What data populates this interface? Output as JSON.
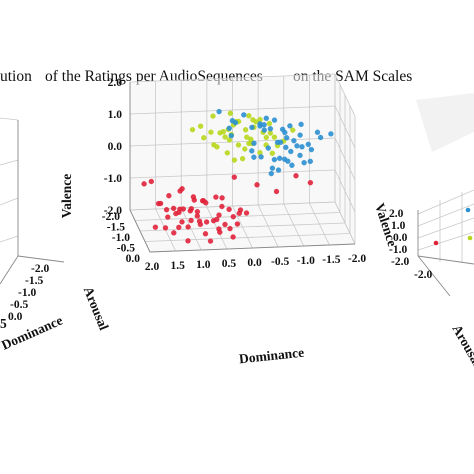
{
  "caption": {
    "part1": "ution",
    "part2": "of the Ratings per AudioSequences",
    "part3": "on the SAM Scales"
  },
  "chart_data": {
    "type": "scatter",
    "title": "",
    "xlabel": "Dominance",
    "ylabel": "Arousal",
    "zlabel": "Valence",
    "xlim": [
      -2.0,
      2.0
    ],
    "ylim": [
      0.0,
      -2.0
    ],
    "zlim": [
      -2.0,
      2.0
    ],
    "xticks": [
      "2.0",
      "1.5",
      "1.0",
      "0.5",
      "0.0",
      "-0.5",
      "-1.0",
      "-1.5",
      "-2.0"
    ],
    "xtick_values": [
      2.0,
      1.5,
      1.0,
      0.5,
      0.0,
      -0.5,
      -1.0,
      -1.5,
      -2.0
    ],
    "yticks": [
      "0.0",
      "-0.5",
      "-1.0",
      "-1.5",
      "-2.0"
    ],
    "ytick_values": [
      0.0,
      -0.5,
      -1.0,
      -1.5,
      -2.0
    ],
    "zticks": [
      "2.0",
      "1.0",
      "0.0",
      "-1.0",
      "-2.0"
    ],
    "ztick_values": [
      2.0,
      1.0,
      0.0,
      -1.0,
      -2.0
    ],
    "colors": {
      "red": "#e0223a",
      "blue": "#2b8fd0",
      "green": "#b7d71c"
    },
    "series": [
      {
        "color": "#e0223a",
        "points": [
          [
            0.9,
            -0.6,
            -1.6
          ],
          [
            1.1,
            -0.8,
            -1.8
          ],
          [
            0.6,
            -0.5,
            -1.4
          ],
          [
            1.3,
            -1.0,
            -1.5
          ],
          [
            0.8,
            -1.2,
            -1.9
          ],
          [
            0.4,
            -0.7,
            -1.7
          ],
          [
            1.0,
            -0.4,
            -1.2
          ],
          [
            1.5,
            -0.9,
            -1.3
          ],
          [
            0.2,
            -0.9,
            -1.6
          ],
          [
            0.7,
            -1.4,
            -1.4
          ],
          [
            1.2,
            -0.3,
            -1.9
          ],
          [
            0.5,
            -1.1,
            -1.1
          ],
          [
            0.9,
            -1.5,
            -1.7
          ],
          [
            1.4,
            -1.3,
            -1.8
          ],
          [
            0.3,
            -0.4,
            -1.9
          ],
          [
            1.1,
            -1.6,
            -1.2
          ],
          [
            0.6,
            -0.2,
            -1.6
          ],
          [
            0.0,
            -0.6,
            -1.3
          ],
          [
            1.6,
            -0.5,
            -1.6
          ],
          [
            0.8,
            -0.8,
            -1.0
          ],
          [
            1.0,
            -1.1,
            -1.5
          ],
          [
            0.4,
            -1.3,
            -1.8
          ],
          [
            1.3,
            -0.6,
            -1.1
          ],
          [
            0.7,
            -0.3,
            -1.3
          ],
          [
            1.2,
            -1.2,
            -1.6
          ],
          [
            0.1,
            -1.0,
            -1.9
          ],
          [
            0.9,
            -0.9,
            -1.4
          ],
          [
            1.5,
            -1.5,
            -1.5
          ],
          [
            0.5,
            -0.8,
            -1.9
          ],
          [
            1.1,
            -0.5,
            -1.4
          ],
          [
            0.3,
            -1.5,
            -1.4
          ],
          [
            0.8,
            -0.1,
            -1.8
          ],
          [
            1.4,
            -0.2,
            -1.4
          ],
          [
            0.6,
            -1.6,
            -1.6
          ],
          [
            1.0,
            -1.8,
            -1.9
          ],
          [
            0.2,
            -0.3,
            -1.1
          ],
          [
            1.7,
            -1.0,
            -1.9
          ],
          [
            0.9,
            -1.3,
            -1.2
          ],
          [
            0.5,
            -0.5,
            -1.0
          ],
          [
            1.2,
            -0.9,
            -1.7
          ],
          [
            0.7,
            -1.0,
            -1.8
          ],
          [
            1.3,
            -1.7,
            -1.4
          ],
          [
            0.4,
            -0.2,
            -1.5
          ],
          [
            1.1,
            -1.4,
            -1.0
          ],
          [
            0.0,
            -1.2,
            -1.6
          ],
          [
            1.6,
            -1.2,
            -1.3
          ],
          [
            0.8,
            -0.6,
            -1.9
          ],
          [
            0.3,
            -0.8,
            -1.3
          ],
          [
            1.0,
            -0.7,
            -0.9
          ],
          [
            1.4,
            -0.7,
            -1.9
          ]
        ]
      },
      {
        "color": "#b7d71c",
        "points": [
          [
            -0.2,
            -1.6,
            0.4
          ],
          [
            0.1,
            -1.8,
            0.2
          ],
          [
            -0.5,
            -1.5,
            0.6
          ],
          [
            -0.3,
            -1.9,
            0.0
          ],
          [
            0.2,
            -1.4,
            0.8
          ],
          [
            -0.6,
            -1.7,
            0.3
          ],
          [
            0.0,
            -1.6,
            0.9
          ],
          [
            -0.4,
            -1.3,
            0.1
          ],
          [
            0.3,
            -1.7,
            0.5
          ],
          [
            -0.1,
            -1.9,
            0.7
          ],
          [
            -0.7,
            -1.4,
            0.5
          ],
          [
            0.4,
            -1.5,
            0.2
          ],
          [
            -0.2,
            -1.2,
            0.6
          ],
          [
            0.1,
            -1.3,
            -0.1
          ],
          [
            -0.5,
            -1.8,
            0.8
          ],
          [
            0.2,
            -1.9,
            0.4
          ],
          [
            -0.3,
            -1.5,
            1.0
          ],
          [
            -0.8,
            -1.6,
            0.1
          ],
          [
            0.5,
            -1.6,
            0.6
          ],
          [
            0.0,
            -1.4,
            0.3
          ],
          [
            -0.4,
            -1.9,
            0.5
          ],
          [
            -0.1,
            -1.5,
            -0.2
          ],
          [
            0.3,
            -1.2,
            0.7
          ],
          [
            -0.6,
            -1.3,
            0.7
          ],
          [
            0.1,
            -1.7,
            1.1
          ],
          [
            -0.2,
            -1.8,
            -0.1
          ],
          [
            0.6,
            -1.8,
            0.3
          ],
          [
            -0.5,
            -1.2,
            0.4
          ],
          [
            0.0,
            -1.9,
            0.6
          ],
          [
            -0.3,
            -1.6,
            0.2
          ],
          [
            0.4,
            -1.9,
            0.9
          ],
          [
            -0.7,
            -1.9,
            0.6
          ],
          [
            0.2,
            -1.5,
            0.0
          ],
          [
            -0.1,
            -1.2,
            0.9
          ],
          [
            -0.4,
            -1.7,
            0.8
          ],
          [
            0.5,
            -1.3,
            0.4
          ],
          [
            -0.9,
            -1.5,
            0.3
          ],
          [
            0.1,
            -1.6,
            0.5
          ],
          [
            -0.2,
            -1.4,
            1.2
          ],
          [
            0.7,
            -1.6,
            0.8
          ]
        ]
      },
      {
        "color": "#2b8fd0",
        "points": [
          [
            -0.8,
            -1.6,
            0.2
          ],
          [
            -1.0,
            -1.8,
            -0.1
          ],
          [
            -0.6,
            -1.9,
            0.4
          ],
          [
            -1.2,
            -1.7,
            0.0
          ],
          [
            -0.9,
            -1.4,
            -0.2
          ],
          [
            -0.7,
            -1.8,
            0.5
          ],
          [
            -1.1,
            -1.5,
            0.3
          ],
          [
            -0.5,
            -1.7,
            -0.3
          ],
          [
            -1.3,
            -1.9,
            0.2
          ],
          [
            -0.8,
            -1.3,
            0.4
          ],
          [
            -1.0,
            -1.6,
            -0.4
          ],
          [
            -0.6,
            -1.5,
            0.1
          ],
          [
            -1.2,
            -1.4,
            -0.1
          ],
          [
            -0.4,
            -1.9,
            0.0
          ],
          [
            -0.9,
            -1.9,
            -0.5
          ],
          [
            -1.4,
            -1.6,
            0.1
          ],
          [
            -0.7,
            -1.4,
            -0.2
          ],
          [
            -1.1,
            -1.9,
            0.5
          ],
          [
            -0.3,
            -1.6,
            0.7
          ],
          [
            -0.2,
            -1.9,
            0.9
          ],
          [
            0.1,
            -1.5,
            1.0
          ],
          [
            -0.5,
            -1.4,
            0.9
          ],
          [
            0.3,
            -1.8,
            1.1
          ],
          [
            -0.9,
            -1.2,
            0.6
          ],
          [
            -1.5,
            -1.8,
            -0.2
          ],
          [
            -0.6,
            -1.2,
            -0.5
          ],
          [
            -1.0,
            -1.3,
            0.1
          ],
          [
            -1.3,
            -1.5,
            -0.4
          ],
          [
            0.0,
            -1.7,
            0.8
          ],
          [
            -0.4,
            -1.3,
            1.0
          ],
          [
            -0.8,
            -1.9,
            0.7
          ],
          [
            -1.2,
            -1.2,
            0.3
          ],
          [
            -0.7,
            -1.6,
            -0.6
          ],
          [
            -1.6,
            -1.7,
            0.4
          ],
          [
            -0.5,
            -1.8,
            0.6
          ],
          [
            -1.1,
            -1.7,
            -0.6
          ],
          [
            -0.9,
            -1.6,
            0.6
          ],
          [
            -1.4,
            -1.4,
            -0.3
          ],
          [
            0.2,
            -1.3,
            0.9
          ],
          [
            -0.6,
            -1.7,
            0.9
          ],
          [
            -1.7,
            -1.9,
            0.1
          ],
          [
            -1.0,
            -1.9,
            0.3
          ],
          [
            -0.3,
            -1.4,
            -0.1
          ],
          [
            -0.8,
            -1.5,
            -0.6
          ],
          [
            -1.3,
            -1.8,
            0.6
          ]
        ]
      },
      {
        "color": "#e0223a",
        "points": [
          [
            1.8,
            -0.9,
            -0.4
          ],
          [
            1.5,
            -0.2,
            -0.8
          ],
          [
            1.9,
            -1.1,
            -0.6
          ],
          [
            -1.2,
            -1.8,
            -1.0
          ],
          [
            -0.8,
            -1.7,
            -1.4
          ],
          [
            0.2,
            -0.8,
            -0.3
          ],
          [
            -1.5,
            -1.9,
            -1.3
          ],
          [
            -0.4,
            -1.6,
            -1.1
          ]
        ]
      },
      {
        "color": "#2b8fd0",
        "points": [
          [
            0.2,
            -1.1,
            0.8
          ],
          [
            -1.9,
            -1.9,
            0.2
          ],
          [
            -0.2,
            -1.1,
            0.3
          ]
        ]
      },
      {
        "color": "#b7d71c",
        "points": [
          [
            -0.6,
            -1.1,
            0.2
          ],
          [
            0.8,
            -1.9,
            0.5
          ],
          [
            -1.0,
            -1.1,
            0.9
          ]
        ]
      }
    ]
  }
}
